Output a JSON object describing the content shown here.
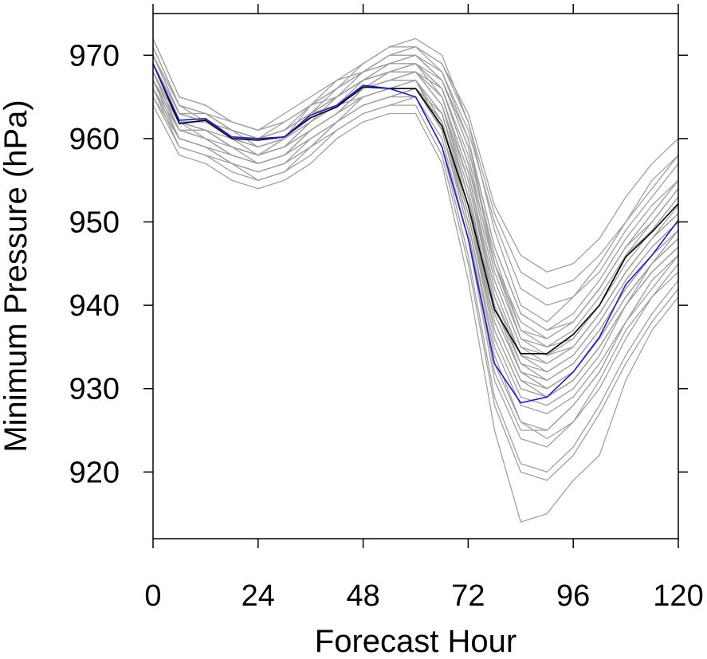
{
  "chart_data": {
    "type": "line",
    "title": "",
    "xlabel": "Forecast Hour",
    "ylabel": "Minimum Pressure (hPa)",
    "xlim": [
      0,
      120
    ],
    "ylim": [
      912,
      975
    ],
    "xticks": [
      0,
      24,
      48,
      72,
      96,
      120
    ],
    "yticks": [
      920,
      930,
      940,
      950,
      960,
      970
    ],
    "grid": false,
    "legend": "none",
    "x": [
      0,
      6,
      12,
      18,
      24,
      30,
      36,
      42,
      48,
      54,
      60,
      66,
      72,
      78,
      84,
      90,
      96,
      102,
      108,
      114,
      120
    ],
    "colors": {
      "ensemble": "#a0a0a0",
      "highlight_black": "#000000",
      "highlight_blue": "#1a1adf",
      "frame": "#000000"
    },
    "series": [
      {
        "style": "highlight_black",
        "values": [
          969,
          961.8,
          962.2,
          960,
          959.8,
          960.2,
          962.5,
          963.8,
          966.2,
          966,
          966,
          961.5,
          952,
          939.5,
          934.2,
          934.2,
          936.5,
          940,
          945.8,
          948.8,
          952.2
        ]
      },
      {
        "style": "highlight_blue",
        "values": [
          969,
          962.2,
          962.4,
          960.2,
          960,
          960.2,
          962.8,
          964,
          966.4,
          966,
          965,
          959,
          948,
          933,
          928.3,
          929,
          932,
          936.2,
          942.5,
          946,
          950.2
        ]
      },
      {
        "style": "ensemble",
        "values": [
          972,
          965,
          964,
          962,
          961,
          963,
          965,
          967,
          968,
          970,
          971,
          969,
          963,
          952,
          946,
          944,
          945,
          948,
          953,
          957,
          960
        ]
      },
      {
        "style": "ensemble",
        "values": [
          968,
          961,
          960,
          958,
          957,
          958,
          961,
          963,
          966,
          967,
          968,
          966,
          957,
          945,
          938,
          936,
          938,
          942,
          947,
          950,
          954
        ]
      },
      {
        "style": "ensemble",
        "values": [
          970,
          963,
          963,
          961,
          960,
          961,
          963,
          965,
          967,
          968,
          969,
          967,
          960,
          947,
          939,
          937,
          939,
          943,
          948,
          952,
          955
        ]
      },
      {
        "style": "ensemble",
        "values": [
          966,
          960,
          959,
          957,
          956,
          957,
          959,
          962,
          964,
          965,
          966,
          963,
          953,
          940,
          932,
          930,
          932,
          936,
          941,
          945,
          948
        ]
      },
      {
        "style": "ensemble",
        "values": [
          971,
          964,
          962,
          960,
          958,
          960,
          964,
          966,
          969,
          971,
          972,
          970,
          962,
          949,
          940,
          938,
          941,
          945,
          950,
          955,
          958
        ]
      },
      {
        "style": "ensemble",
        "values": [
          967,
          961,
          961,
          959,
          958,
          959,
          962,
          964,
          965,
          966,
          967,
          962,
          950,
          935,
          928,
          927,
          929,
          933,
          938,
          943,
          946
        ]
      },
      {
        "style": "ensemble",
        "values": [
          969,
          962,
          962,
          960,
          959,
          960,
          963,
          965,
          967,
          968,
          969,
          965,
          955,
          940,
          933,
          932,
          934,
          938,
          943,
          947,
          950
        ]
      },
      {
        "style": "ensemble",
        "values": [
          965,
          959,
          958,
          956,
          955,
          956,
          958,
          961,
          963,
          964,
          964,
          958,
          945,
          928,
          920,
          919,
          922,
          927,
          933,
          938,
          942
        ]
      },
      {
        "style": "ensemble",
        "values": [
          970,
          963,
          962,
          961,
          960,
          961,
          963,
          966,
          968,
          970,
          971,
          968,
          960,
          945,
          936,
          934,
          935,
          939,
          944,
          948,
          951
        ]
      },
      {
        "style": "ensemble",
        "values": [
          968,
          962,
          961,
          959,
          958,
          959,
          962,
          964,
          966,
          967,
          967,
          963,
          952,
          937,
          930,
          929,
          931,
          935,
          940,
          944,
          947
        ]
      },
      {
        "style": "ensemble",
        "values": [
          967,
          962,
          960,
          959,
          957,
          958,
          961,
          963,
          966,
          967,
          968,
          964,
          953,
          938,
          931,
          930,
          932,
          936,
          941,
          945,
          948
        ]
      },
      {
        "style": "ensemble",
        "values": [
          964,
          958,
          957,
          955,
          954,
          955,
          957,
          960,
          962,
          963,
          963,
          957,
          943,
          925,
          914,
          915,
          919,
          922,
          931,
          937,
          941
        ]
      },
      {
        "style": "ensemble",
        "values": [
          969,
          963,
          962,
          960,
          960,
          961,
          963,
          964,
          966,
          968,
          969,
          966,
          958,
          944,
          936,
          935,
          937,
          941,
          946,
          949,
          953
        ]
      },
      {
        "style": "ensemble",
        "values": [
          966,
          960,
          959,
          957,
          956,
          957,
          960,
          962,
          964,
          965,
          965,
          960,
          948,
          931,
          924,
          923,
          926,
          930,
          936,
          941,
          945
        ]
      },
      {
        "style": "ensemble",
        "values": [
          970,
          964,
          963,
          961,
          960,
          962,
          964,
          966,
          968,
          969,
          970,
          968,
          961,
          950,
          942,
          940,
          941,
          944,
          949,
          953,
          957
        ]
      },
      {
        "style": "ensemble",
        "values": [
          968,
          961,
          960,
          958,
          957,
          958,
          961,
          963,
          966,
          967,
          968,
          965,
          956,
          941,
          933,
          931,
          933,
          937,
          942,
          946,
          949
        ]
      },
      {
        "style": "ensemble",
        "values": [
          967,
          961,
          961,
          959,
          958,
          960,
          962,
          964,
          966,
          967,
          967,
          961,
          949,
          933,
          926,
          925,
          928,
          932,
          938,
          942,
          946
        ]
      },
      {
        "style": "ensemble",
        "values": [
          969,
          962,
          961,
          960,
          959,
          960,
          962,
          964,
          967,
          968,
          969,
          966,
          957,
          943,
          935,
          933,
          935,
          939,
          944,
          948,
          952
        ]
      },
      {
        "style": "ensemble",
        "values": [
          971,
          964,
          963,
          962,
          961,
          962,
          964,
          966,
          968,
          970,
          970,
          967,
          959,
          946,
          937,
          936,
          938,
          942,
          947,
          951,
          955
        ]
      },
      {
        "style": "ensemble",
        "values": [
          966,
          959,
          958,
          957,
          956,
          957,
          959,
          962,
          964,
          965,
          966,
          961,
          950,
          934,
          926,
          924,
          926,
          931,
          937,
          941,
          944
        ]
      },
      {
        "style": "ensemble",
        "values": [
          968,
          962,
          962,
          960,
          959,
          960,
          963,
          965,
          967,
          968,
          968,
          964,
          954,
          939,
          932,
          931,
          933,
          937,
          942,
          946,
          949
        ]
      },
      {
        "style": "ensemble",
        "values": [
          967,
          960,
          959,
          958,
          957,
          958,
          961,
          963,
          965,
          966,
          967,
          962,
          951,
          936,
          929,
          928,
          930,
          934,
          940,
          944,
          947
        ]
      },
      {
        "style": "ensemble",
        "values": [
          970,
          963,
          962,
          961,
          959,
          960,
          963,
          965,
          967,
          969,
          970,
          967,
          959,
          945,
          937,
          935,
          936,
          940,
          945,
          949,
          953
        ]
      },
      {
        "style": "ensemble",
        "values": [
          969,
          962,
          961,
          959,
          958,
          959,
          962,
          964,
          966,
          968,
          968,
          965,
          956,
          942,
          934,
          932,
          934,
          938,
          943,
          947,
          950
        ]
      },
      {
        "style": "ensemble",
        "values": [
          965,
          960,
          959,
          957,
          955,
          956,
          959,
          961,
          963,
          964,
          965,
          959,
          946,
          929,
          921,
          920,
          923,
          928,
          934,
          939,
          943
        ]
      },
      {
        "style": "ensemble",
        "values": [
          968,
          961,
          961,
          959,
          958,
          959,
          961,
          963,
          965,
          966,
          966,
          962,
          952,
          938,
          931,
          929,
          931,
          935,
          940,
          945,
          948
        ]
      },
      {
        "style": "ensemble",
        "values": [
          970,
          963,
          963,
          961,
          960,
          961,
          964,
          965,
          967,
          969,
          969,
          966,
          957,
          943,
          935,
          934,
          936,
          940,
          946,
          950,
          954
        ]
      },
      {
        "style": "ensemble",
        "values": [
          966,
          961,
          960,
          958,
          957,
          958,
          960,
          962,
          964,
          965,
          966,
          962,
          951,
          937,
          930,
          929,
          931,
          935,
          940,
          944,
          947
        ]
      },
      {
        "style": "ensemble",
        "values": [
          972,
          965,
          964,
          962,
          961,
          962,
          964,
          967,
          969,
          971,
          971,
          969,
          962,
          951,
          944,
          942,
          943,
          946,
          950,
          954,
          958
        ]
      },
      {
        "style": "ensemble",
        "values": [
          967,
          961,
          960,
          958,
          957,
          958,
          960,
          962,
          965,
          966,
          966,
          961,
          949,
          932,
          925,
          925,
          928,
          932,
          938,
          943,
          946
        ]
      },
      {
        "style": "ensemble",
        "values": [
          969,
          963,
          962,
          960,
          959,
          960,
          962,
          965,
          967,
          968,
          968,
          964,
          955,
          941,
          934,
          933,
          935,
          939,
          944,
          948,
          951
        ]
      },
      {
        "style": "ensemble",
        "values": [
          968,
          962,
          961,
          959,
          958,
          959,
          961,
          963,
          966,
          967,
          967,
          963,
          953,
          939,
          932,
          930,
          932,
          936,
          941,
          945,
          949
        ]
      },
      {
        "style": "ensemble",
        "values": [
          970,
          964,
          963,
          961,
          960,
          961,
          963,
          965,
          968,
          969,
          970,
          967,
          960,
          947,
          939,
          937,
          938,
          942,
          947,
          951,
          955
        ]
      }
    ]
  }
}
